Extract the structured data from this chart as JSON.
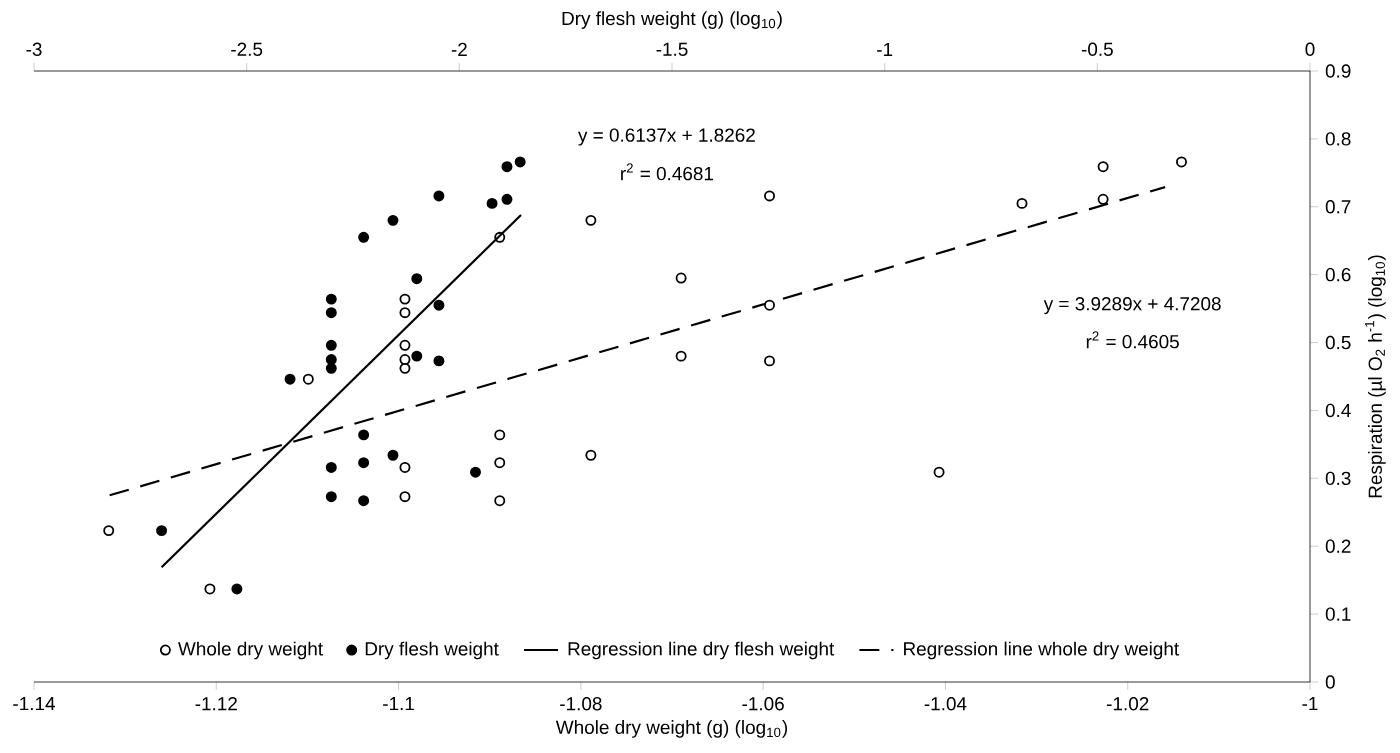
{
  "chart_data": {
    "type": "scatter",
    "xlabel": "Whole dry weight (g) (log$_{10}$)",
    "x2label": "Dry flesh weight (g) (log$_{10}$)",
    "ylabel": "Respiration (µl O$_{2}$ h$^{-1}$) (log$_{10}$)",
    "xlim": [
      -1.14,
      -1
    ],
    "xticks": [
      -1.14,
      -1.12,
      -1.1,
      -1.08,
      -1.06,
      -1.04,
      -1.02,
      -1
    ],
    "x2lim": [
      -3,
      0
    ],
    "x2ticks": [
      -3,
      -2.5,
      -2,
      -1.5,
      -1,
      -0.5,
      0
    ],
    "ylim": [
      0,
      0.9
    ],
    "yticks": [
      0,
      0.1,
      0.2,
      0.3,
      0.4,
      0.5,
      0.6,
      0.7,
      0.8,
      0.9
    ],
    "legend": "bottom",
    "annotations": [
      "y = 0.6137x + 1.8262",
      "r$^{2}$ = 0.4681",
      "y = 3.9289x + 4.7208",
      "r$^{2}$ = 0.4605"
    ],
    "series": [
      {
        "name": "Whole dry weight",
        "marker": "circle",
        "color": "#ffffff",
        "x": [
          -1.0789,
          -1.0889,
          -1.0993,
          -1.0993,
          -1.0993,
          -1.0993,
          -1.0993,
          -1.069,
          -1.069,
          -1.1099,
          -1.0593,
          -1.0316,
          -1.0227,
          -1.0227,
          -1.0141,
          -1.0593,
          -1.0593,
          -1.0889,
          -1.0789,
          -1.0993,
          -1.0889,
          -1.0993,
          -1.0889,
          -1.1318,
          -1.1207,
          -1.0407
        ],
        "values": [
          0.68,
          0.655,
          0.564,
          0.544,
          0.496,
          0.475,
          0.462,
          0.595,
          0.48,
          0.446,
          0.716,
          0.705,
          0.759,
          0.711,
          0.766,
          0.555,
          0.473,
          0.364,
          0.334,
          0.316,
          0.323,
          0.273,
          0.267,
          0.223,
          0.137,
          0.309
        ]
      },
      {
        "name": "Dry flesh weight",
        "marker": "circle",
        "color": "#000000",
        "axis": "x2",
        "x": [
          -1.857,
          -1.888,
          -2.048,
          -1.923,
          -1.888,
          -2.156,
          -2.225,
          -2.1,
          -2.301,
          -2.301,
          -2.048,
          -2.301,
          -2.301,
          -2.301,
          -2.1,
          -2.048,
          -2.398,
          -2.225,
          -2.156,
          -2.301,
          -2.225,
          -1.962,
          -2.301,
          -2.225,
          -2.7,
          -2.523
        ],
        "values": [
          0.766,
          0.759,
          0.716,
          0.705,
          0.711,
          0.68,
          0.655,
          0.594,
          0.564,
          0.544,
          0.555,
          0.496,
          0.475,
          0.462,
          0.48,
          0.473,
          0.446,
          0.364,
          0.334,
          0.316,
          0.323,
          0.309,
          0.273,
          0.267,
          0.223,
          0.137
        ]
      },
      {
        "name": "Regression line dry flesh weight",
        "type": "line",
        "marker": "none",
        "line_style": "solid",
        "color": "#000000",
        "axis": "x2",
        "x": [
          -2.7,
          -1.855
        ],
        "values": [
          0.169,
          0.688
        ]
      },
      {
        "name": "Regression line whole dry weight",
        "type": "line",
        "marker": "none",
        "line_style": "dashed",
        "color": "#000000",
        "x": [
          -1.1317,
          -1.0159
        ],
        "values": [
          0.275,
          0.729
        ]
      }
    ]
  }
}
